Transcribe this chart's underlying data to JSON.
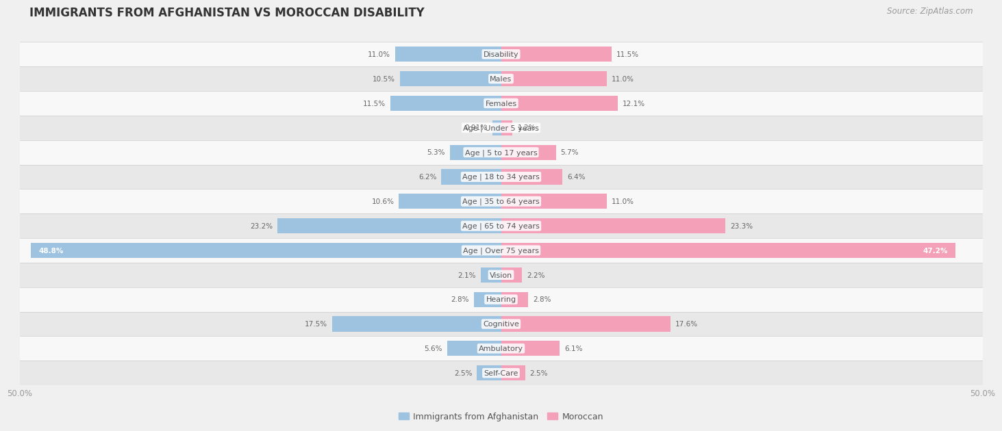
{
  "title": "IMMIGRANTS FROM AFGHANISTAN VS MOROCCAN DISABILITY",
  "source": "Source: ZipAtlas.com",
  "categories": [
    "Disability",
    "Males",
    "Females",
    "Age | Under 5 years",
    "Age | 5 to 17 years",
    "Age | 18 to 34 years",
    "Age | 35 to 64 years",
    "Age | 65 to 74 years",
    "Age | Over 75 years",
    "Vision",
    "Hearing",
    "Cognitive",
    "Ambulatory",
    "Self-Care"
  ],
  "left_values": [
    11.0,
    10.5,
    11.5,
    0.91,
    5.3,
    6.2,
    10.6,
    23.2,
    48.8,
    2.1,
    2.8,
    17.5,
    5.6,
    2.5
  ],
  "right_values": [
    11.5,
    11.0,
    12.1,
    1.2,
    5.7,
    6.4,
    11.0,
    23.3,
    47.2,
    2.2,
    2.8,
    17.6,
    6.1,
    2.5
  ],
  "left_color": "#9dc3e0",
  "right_color": "#f4a0b8",
  "left_label": "Immigrants from Afghanistan",
  "right_label": "Moroccan",
  "max_val": 50.0,
  "background_color": "#f0f0f0",
  "row_color_even": "#f8f8f8",
  "row_color_odd": "#e8e8e8",
  "title_fontsize": 12,
  "source_fontsize": 8.5,
  "label_fontsize": 8,
  "value_fontsize": 7.5,
  "bar_height": 0.62,
  "axis_label_color": "#999999",
  "text_color": "#555555",
  "value_color_inside": "#ffffff",
  "value_color_outside": "#666666"
}
